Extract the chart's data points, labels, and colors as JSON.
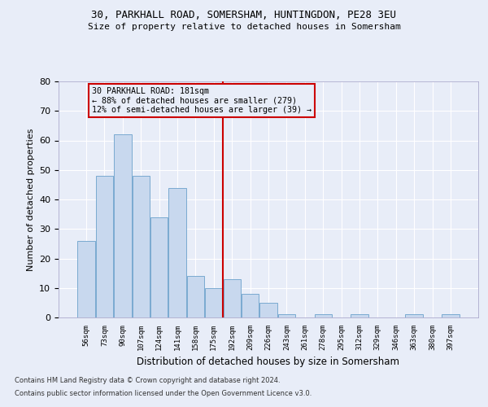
{
  "title": "30, PARKHALL ROAD, SOMERSHAM, HUNTINGDON, PE28 3EU",
  "subtitle": "Size of property relative to detached houses in Somersham",
  "xlabel": "Distribution of detached houses by size in Somersham",
  "ylabel": "Number of detached properties",
  "categories": [
    "56sqm",
    "73sqm",
    "90sqm",
    "107sqm",
    "124sqm",
    "141sqm",
    "158sqm",
    "175sqm",
    "192sqm",
    "209sqm",
    "226sqm",
    "243sqm",
    "261sqm",
    "278sqm",
    "295sqm",
    "312sqm",
    "329sqm",
    "346sqm",
    "363sqm",
    "380sqm",
    "397sqm"
  ],
  "values": [
    26,
    48,
    62,
    48,
    34,
    44,
    14,
    10,
    13,
    8,
    5,
    1,
    0,
    1,
    0,
    1,
    0,
    0,
    1,
    0,
    1
  ],
  "bar_color": "#c8d8ee",
  "bar_edge_color": "#7aaad0",
  "background_color": "#e8edf8",
  "grid_color": "#ffffff",
  "annotation_box_color": "#cc0000",
  "property_line_color": "#cc0000",
  "property_line_x": 7.5,
  "annotation_title": "30 PARKHALL ROAD: 181sqm",
  "annotation_line1": "← 88% of detached houses are smaller (279)",
  "annotation_line2": "12% of semi-detached houses are larger (39) →",
  "ylim": [
    0,
    80
  ],
  "yticks": [
    0,
    10,
    20,
    30,
    40,
    50,
    60,
    70,
    80
  ],
  "footer1": "Contains HM Land Registry data © Crown copyright and database right 2024.",
  "footer2": "Contains public sector information licensed under the Open Government Licence v3.0."
}
